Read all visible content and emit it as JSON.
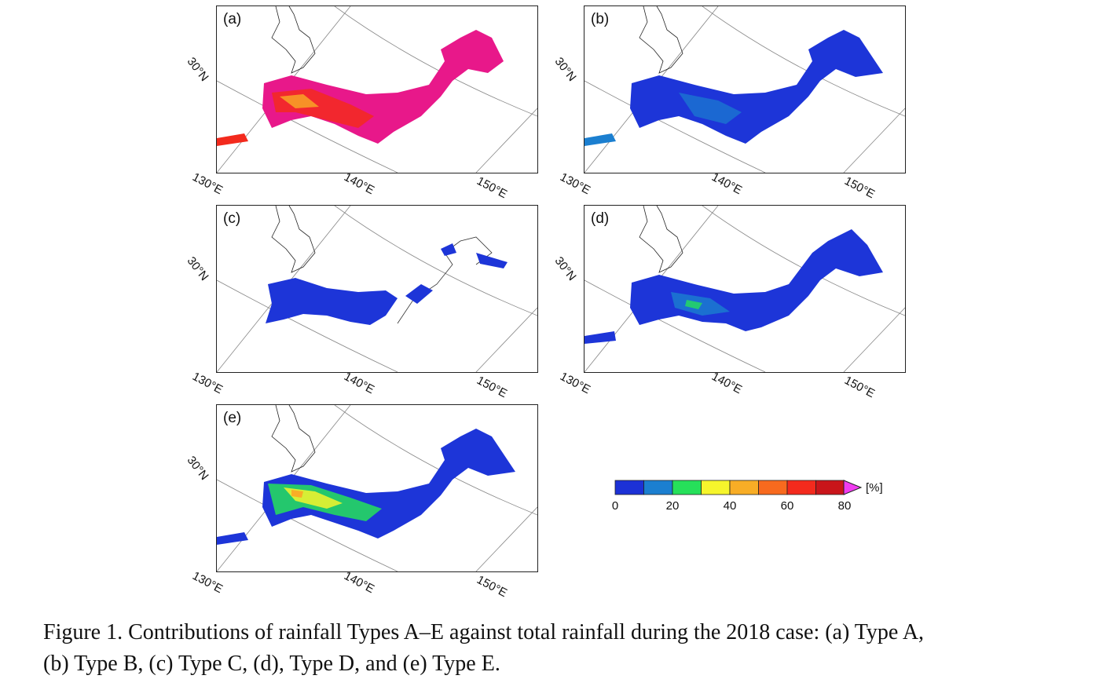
{
  "figure": {
    "panels": [
      {
        "id": "a",
        "label": "(a)",
        "fill": "#e8188a",
        "type": "Type A"
      },
      {
        "id": "b",
        "label": "(b)",
        "fill": "#1d35d8",
        "type": "Type B"
      },
      {
        "id": "c",
        "label": "(c)",
        "fill": "#1d35d8",
        "type": "Type C"
      },
      {
        "id": "d",
        "label": "(d)",
        "fill": "#1d35d8",
        "type": "Type D"
      },
      {
        "id": "e",
        "label": "(e)",
        "fill": "#1d35d8",
        "type": "Type E"
      }
    ],
    "axis_labels": {
      "lat": "30°N",
      "lon": [
        "130°E",
        "140°E",
        "150°E"
      ]
    },
    "colorbar": {
      "colors": [
        "#1c31d6",
        "#1b7fd0",
        "#26e05a",
        "#f6f52c",
        "#f8ad26",
        "#f86a1e",
        "#f32a1d",
        "#c9151a"
      ],
      "over_color": "#f03cf0",
      "ticks": [
        "0",
        "20",
        "40",
        "60",
        "80"
      ],
      "unit": "[%]"
    },
    "caption_line1": "Figure 1. Contributions of rainfall Types A–E against total rainfall during the 2018 case: (a) Type A,",
    "caption_line2": "(b) Type B, (c) Type C, (d), Type D, and (e) Type E."
  }
}
